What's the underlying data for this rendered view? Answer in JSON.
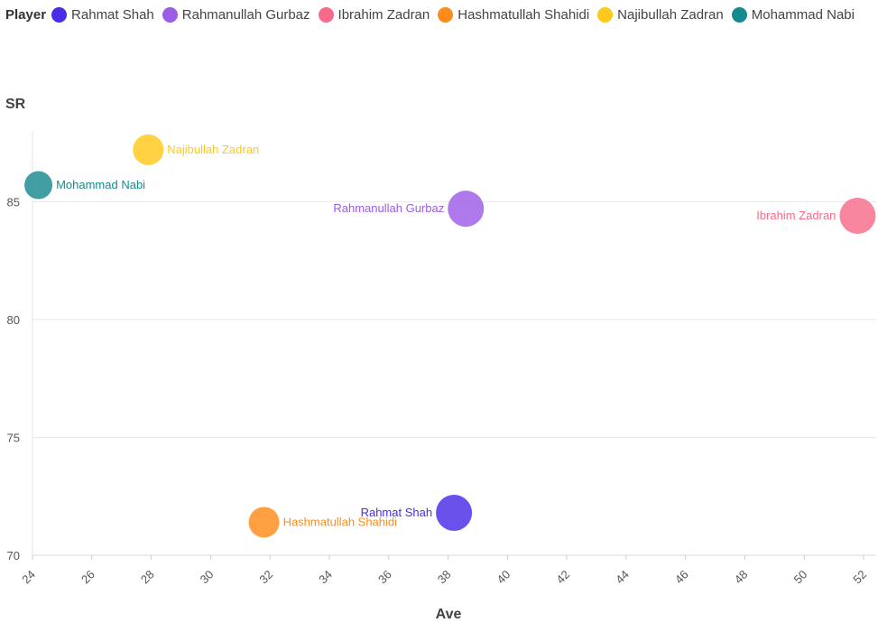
{
  "legend": {
    "title": "Player"
  },
  "chart_data": {
    "type": "scatter",
    "xlabel": "Ave",
    "ylabel": "SR",
    "xlim": [
      24,
      52
    ],
    "ylim": [
      70,
      88
    ],
    "xticks": [
      24,
      26,
      28,
      30,
      32,
      34,
      36,
      38,
      40,
      42,
      44,
      46,
      48,
      50,
      52
    ],
    "yticks": [
      70,
      75,
      80,
      85
    ],
    "grid": "horizontal",
    "legend_position": "top-left",
    "series": [
      {
        "name": "Rahmat Shah",
        "color": "#4a2be8",
        "x": 38.2,
        "y": 71.8,
        "size": 1.2,
        "label_side": "left"
      },
      {
        "name": "Rahmanullah Gurbaz",
        "color": "#9b5ce6",
        "x": 38.6,
        "y": 84.7,
        "size": 1.2,
        "label_side": "left"
      },
      {
        "name": "Ibrahim Zadran",
        "color": "#f76b8a",
        "x": 51.8,
        "y": 84.4,
        "size": 1.2,
        "label_side": "left"
      },
      {
        "name": "Hashmatullah Shahidi",
        "color": "#ff8c1a",
        "x": 31.8,
        "y": 71.4,
        "size": 1.0,
        "label_side": "right"
      },
      {
        "name": "Najibullah Zadran",
        "color": "#ffc81a",
        "x": 27.9,
        "y": 87.2,
        "size": 1.0,
        "label_side": "right"
      },
      {
        "name": "Mohammad Nabi",
        "color": "#178a8f",
        "x": 24.2,
        "y": 85.7,
        "size": 0.9,
        "label_side": "right"
      }
    ]
  }
}
